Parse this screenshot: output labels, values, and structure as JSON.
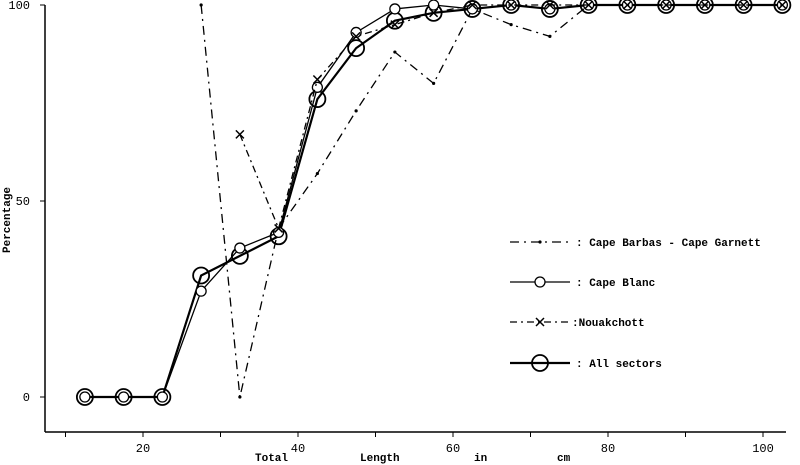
{
  "chart_data": {
    "type": "line",
    "title": "",
    "xlabel": "Total Length in cm",
    "xlabel_parts": [
      "Total",
      "Length",
      "in",
      "cm"
    ],
    "ylabel": "Percentage",
    "xlim": [
      10,
      105
    ],
    "ylim": [
      0,
      100
    ],
    "xticks": [
      20,
      40,
      60,
      80,
      100
    ],
    "yticks": [
      0,
      50,
      100
    ],
    "grid": false,
    "legend_position": "center-right",
    "x": [
      12.5,
      17.5,
      22.5,
      27.5,
      32.5,
      37.5,
      42.5,
      47.5,
      52.5,
      57.5,
      62.5,
      67.5,
      72.5,
      77.5,
      82.5,
      87.5,
      92.5,
      97.5,
      102.5
    ],
    "series": [
      {
        "name": "Cape Barbas - Cape Garnett",
        "style": "dash-dot",
        "marker": "dot",
        "values": [
          null,
          null,
          null,
          100,
          0,
          43,
          57,
          73,
          88,
          80,
          99,
          95,
          92,
          100,
          100,
          100,
          100,
          100,
          100
        ]
      },
      {
        "name": "Cape Blanc",
        "style": "solid",
        "marker": "small-circle",
        "values": [
          0,
          0,
          0,
          27,
          38,
          42,
          79,
          93,
          99,
          100,
          99,
          100,
          99,
          100,
          100,
          100,
          100,
          100,
          100
        ]
      },
      {
        "name": "Nouakchott",
        "style": "dash-dot",
        "marker": "x",
        "values": [
          null,
          null,
          null,
          null,
          67,
          43,
          81,
          92,
          95,
          98,
          100,
          100,
          100,
          100,
          100,
          100,
          100,
          100,
          100
        ]
      },
      {
        "name": "All sectors",
        "style": "solid-thick",
        "marker": "large-circle",
        "values": [
          0,
          0,
          0,
          31,
          36,
          41,
          76,
          89,
          96,
          98,
          99,
          100,
          99,
          100,
          100,
          100,
          100,
          100,
          100
        ]
      }
    ],
    "legend": [
      {
        "label": ": Cape Barbas - Cape Garnett"
      },
      {
        "label": ": Cape Blanc"
      },
      {
        "label": ":Nouakchott"
      },
      {
        "label": ": All sectors"
      }
    ]
  }
}
